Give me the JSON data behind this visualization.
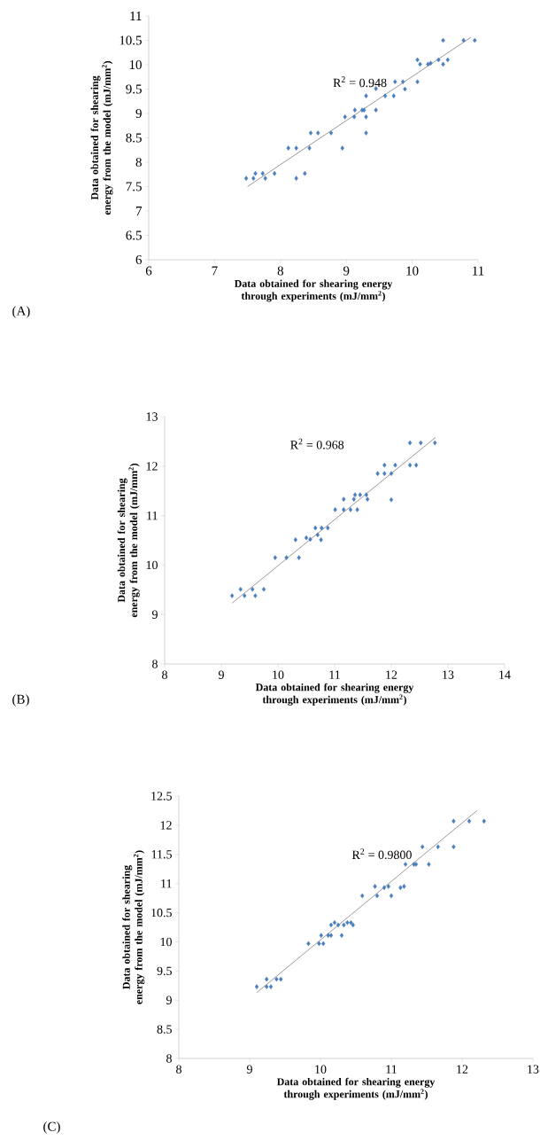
{
  "chart_data": [
    {
      "type": "scatter",
      "xlabel": "Data obtained for shearing energy through experiments (mJ/mm$^{2}$)",
      "ylabel": "Data obtained for shearing energy from the model (mJ/mm$^{2}$)",
      "annotations": [
        "R$^{2}$ = 0.948",
        "(A)"
      ],
      "xlim": [
        6,
        11
      ],
      "xticks": [
        6,
        7,
        8,
        9,
        10,
        11
      ],
      "ylim": [
        6,
        11
      ],
      "yticks": [
        6,
        6.5,
        7,
        7.5,
        8,
        8.5,
        9,
        9.5,
        10,
        10.5,
        11
      ],
      "series": [
        {
          "marker": "diamond",
          "color": "#4a7ebb",
          "x": [
            7.48,
            7.59,
            7.62,
            7.73,
            7.77,
            7.91,
            8.12,
            8.24,
            8.24,
            8.37,
            8.44,
            8.46,
            8.57,
            8.77,
            8.94,
            8.98,
            9.12,
            9.13,
            9.24,
            9.27,
            9.3,
            9.3,
            9.3,
            9.45,
            9.45,
            9.59,
            9.72,
            9.74,
            9.86,
            9.89,
            10.08,
            10.08,
            10.12,
            10.24,
            10.28,
            10.4,
            10.47,
            10.47,
            10.54,
            10.78,
            10.95
          ],
          "values": [
            7.67,
            7.67,
            7.77,
            7.77,
            7.67,
            7.77,
            8.29,
            8.29,
            7.67,
            7.77,
            8.29,
            8.6,
            8.6,
            8.6,
            8.29,
            8.93,
            8.93,
            9.07,
            9.07,
            9.07,
            9.36,
            8.93,
            8.6,
            9.07,
            9.51,
            9.36,
            9.36,
            9.65,
            9.65,
            9.5,
            9.65,
            10.1,
            10.01,
            10.01,
            10.03,
            10.1,
            10.5,
            10.01,
            10.1,
            10.5,
            10.5
          ]
        },
        {
          "type": "line",
          "color": "#7f7f7f",
          "x": [
            7.5,
            10.89
          ],
          "values": [
            7.5,
            10.56
          ]
        }
      ]
    },
    {
      "type": "scatter",
      "xlabel": "Data obtained for shearing energy through experiments (mJ/mm$^{2}$)",
      "ylabel": "Data obtained for shearing energy from the model (mJ/mm$^{2}$)",
      "annotations": [
        "R$^{2}$ = 0.968",
        "(B)"
      ],
      "xlim": [
        8,
        14
      ],
      "xticks": [
        8,
        9,
        10,
        11,
        12,
        13,
        14
      ],
      "ylim": [
        8,
        13
      ],
      "yticks": [
        8,
        9,
        10,
        11,
        12,
        13
      ],
      "series": [
        {
          "marker": "diamond",
          "color": "#4a7ebb",
          "x": [
            9.19,
            9.34,
            9.41,
            9.55,
            9.6,
            9.75,
            9.95,
            10.15,
            10.31,
            10.37,
            10.5,
            10.57,
            10.66,
            10.7,
            10.76,
            10.77,
            10.88,
            11.01,
            11.16,
            11.16,
            11.28,
            11.34,
            11.36,
            11.4,
            11.45,
            11.56,
            11.58,
            11.76,
            11.88,
            11.88,
            12.0,
            12.0,
            12.07,
            12.33,
            12.33,
            12.44,
            12.52,
            12.77
          ],
          "values": [
            9.38,
            9.51,
            9.38,
            9.51,
            9.38,
            9.51,
            10.15,
            10.15,
            10.51,
            10.15,
            10.55,
            10.52,
            10.75,
            10.61,
            10.51,
            10.75,
            10.75,
            11.12,
            11.33,
            11.12,
            11.12,
            11.33,
            11.42,
            11.12,
            11.42,
            11.42,
            11.33,
            11.85,
            12.02,
            11.85,
            11.85,
            11.32,
            12.02,
            12.02,
            12.47,
            12.02,
            12.47,
            12.47
          ]
        },
        {
          "type": "line",
          "color": "#7f7f7f",
          "x": [
            9.19,
            12.78
          ],
          "values": [
            9.23,
            12.58
          ]
        }
      ]
    },
    {
      "type": "scatter",
      "xlabel": "Data obtained for shearing energy through experiments (mJ/mm$^{2}$)",
      "ylabel": "Data obtained for shearing energy from the model (mJ/mm$^{2}$)",
      "annotations": [
        "R$^{2}$ = 0.9800",
        "(C)"
      ],
      "xlim": [
        8,
        13
      ],
      "xticks": [
        8,
        9,
        10,
        11,
        12,
        13
      ],
      "ylim": [
        8,
        12.5
      ],
      "yticks": [
        8,
        8.5,
        9,
        9.5,
        10,
        10.5,
        11,
        11.5,
        12,
        12.5
      ],
      "series": [
        {
          "marker": "diamond",
          "color": "#4a7ebb",
          "x": [
            9.1,
            9.24,
            9.24,
            9.3,
            9.38,
            9.44,
            9.83,
            9.98,
            10.01,
            10.04,
            10.11,
            10.15,
            10.15,
            10.2,
            10.25,
            10.3,
            10.33,
            10.38,
            10.43,
            10.46,
            10.59,
            10.77,
            10.8,
            10.9,
            10.96,
            11.0,
            11.13,
            11.18,
            11.2,
            11.32,
            11.35,
            11.44,
            11.53,
            11.66,
            11.88,
            11.88,
            12.1,
            12.31
          ],
          "values": [
            9.23,
            9.36,
            9.23,
            9.23,
            9.36,
            9.36,
            9.97,
            9.97,
            10.11,
            9.97,
            10.11,
            10.11,
            10.29,
            10.33,
            10.29,
            10.11,
            10.29,
            10.33,
            10.33,
            10.29,
            10.79,
            10.95,
            10.79,
            10.93,
            10.95,
            10.79,
            10.93,
            10.95,
            11.33,
            11.33,
            11.33,
            11.63,
            11.33,
            11.63,
            11.63,
            12.07,
            12.07,
            12.07
          ]
        },
        {
          "type": "line",
          "color": "#7f7f7f",
          "x": [
            9.1,
            12.21
          ],
          "values": [
            9.13,
            12.25
          ]
        }
      ]
    }
  ]
}
